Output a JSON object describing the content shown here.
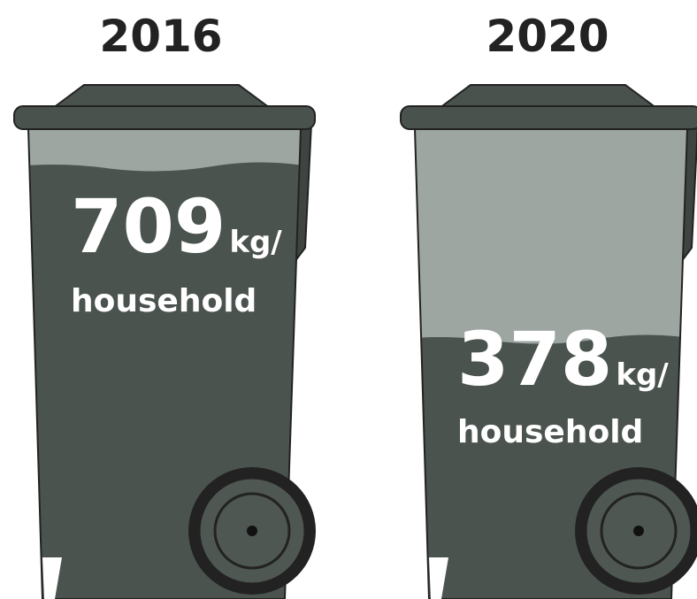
{
  "bins": [
    {
      "year": "2016",
      "value": 709,
      "unit": "kg/",
      "label": "household"
    },
    {
      "year": "2020",
      "value": 378,
      "unit": "kg/",
      "label": "household"
    }
  ]
}
